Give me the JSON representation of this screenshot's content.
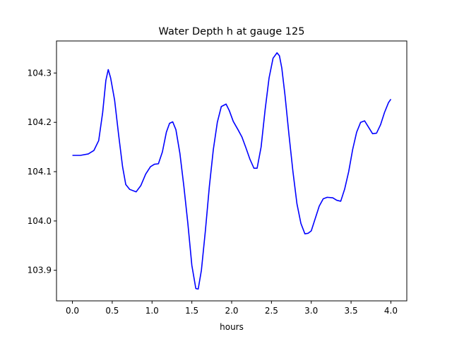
{
  "chart_data": {
    "type": "line",
    "title": "Water Depth h at gauge 125",
    "xlabel": "hours",
    "ylabel": "",
    "xlim": [
      -0.2,
      4.2
    ],
    "ylim": [
      103.838,
      104.365
    ],
    "x_ticks": [
      0.0,
      0.5,
      1.0,
      1.5,
      2.0,
      2.5,
      3.0,
      3.5,
      4.0
    ],
    "x_tick_labels": [
      "0.0",
      "0.5",
      "1.0",
      "1.5",
      "2.0",
      "2.5",
      "3.0",
      "3.5",
      "4.0"
    ],
    "y_ticks": [
      103.9,
      104.0,
      104.1,
      104.2,
      104.3
    ],
    "y_tick_labels": [
      "103.9",
      "104.0",
      "104.1",
      "104.2",
      "104.3"
    ],
    "grid": false,
    "legend": "none",
    "series": [
      {
        "color": "#0000ff",
        "x": [
          0.0,
          0.1,
          0.2,
          0.27,
          0.33,
          0.38,
          0.42,
          0.45,
          0.48,
          0.53,
          0.58,
          0.63,
          0.67,
          0.72,
          0.8,
          0.86,
          0.92,
          0.98,
          1.03,
          1.08,
          1.13,
          1.18,
          1.22,
          1.26,
          1.3,
          1.35,
          1.4,
          1.45,
          1.5,
          1.55,
          1.58,
          1.62,
          1.67,
          1.72,
          1.77,
          1.82,
          1.87,
          1.93,
          1.97,
          2.02,
          2.08,
          2.13,
          2.18,
          2.23,
          2.28,
          2.32,
          2.37,
          2.42,
          2.47,
          2.52,
          2.57,
          2.6,
          2.63,
          2.67,
          2.72,
          2.77,
          2.82,
          2.87,
          2.92,
          2.96,
          3.0,
          3.05,
          3.1,
          3.15,
          3.2,
          3.27,
          3.32,
          3.37,
          3.42,
          3.47,
          3.52,
          3.57,
          3.62,
          3.67,
          3.72,
          3.77,
          3.82,
          3.87,
          3.92,
          3.97,
          4.0
        ],
        "y": [
          104.133,
          104.133,
          104.136,
          104.143,
          104.163,
          104.22,
          104.285,
          104.307,
          104.29,
          104.245,
          104.175,
          104.11,
          104.074,
          104.064,
          104.059,
          104.072,
          104.095,
          104.11,
          104.115,
          104.116,
          104.14,
          104.18,
          104.198,
          104.201,
          104.185,
          104.137,
          104.07,
          103.995,
          103.91,
          103.863,
          103.862,
          103.9,
          103.98,
          104.07,
          104.145,
          104.2,
          104.232,
          104.237,
          104.224,
          104.202,
          104.185,
          104.17,
          104.148,
          104.125,
          104.107,
          104.107,
          104.15,
          104.225,
          104.29,
          104.33,
          104.341,
          104.335,
          104.31,
          104.255,
          104.175,
          104.1,
          104.035,
          103.995,
          103.974,
          103.975,
          103.98,
          104.005,
          104.03,
          104.045,
          104.048,
          104.047,
          104.042,
          104.04,
          104.065,
          104.1,
          104.145,
          104.18,
          104.2,
          104.203,
          104.19,
          104.177,
          104.178,
          104.195,
          104.22,
          104.24,
          104.247
        ]
      }
    ]
  }
}
